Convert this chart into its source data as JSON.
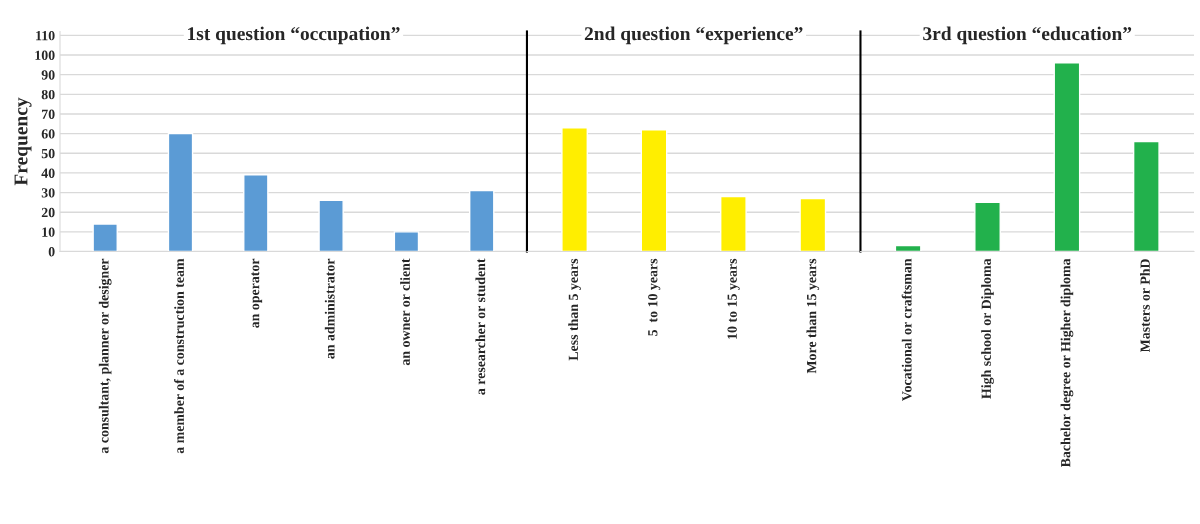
{
  "chart_data": [
    {
      "type": "bar",
      "title": "1st question “occupation”",
      "ylabel": "Frequency",
      "categories": [
        "a consultant, planner or designer",
        "a member of a construction team",
        "an operator",
        "an administrator",
        "an owner or client",
        "a researcher or student"
      ],
      "values": [
        14,
        60,
        39,
        26,
        10,
        31
      ],
      "color": "#5b9bd5",
      "ylim": [
        0,
        112
      ],
      "yticks": [
        0,
        10,
        20,
        30,
        40,
        50,
        60,
        70,
        80,
        90,
        100,
        110
      ],
      "grid": "y"
    },
    {
      "type": "bar",
      "title": "2nd question “experience”",
      "categories": [
        "Less than 5 years",
        "5  to 10 years",
        "10 to 15 years",
        "More than 15 years"
      ],
      "values": [
        63,
        62,
        28,
        27
      ],
      "color": "#ffee00",
      "ylim": [
        0,
        112
      ],
      "yticks": [
        0,
        10,
        20,
        30,
        40,
        50,
        60,
        70,
        80,
        90,
        100,
        110
      ],
      "grid": "y",
      "tick_labels": "x"
    },
    {
      "type": "bar",
      "title": "3rd question “education”",
      "categories": [
        "Vocational or craftsman",
        "High school or Diploma",
        "Bachelor degree or Higher diploma",
        "Masters or PhD"
      ],
      "values": [
        3,
        25,
        96,
        56
      ],
      "color": "#22b14c",
      "ylim": [
        0,
        112
      ],
      "yticks": [
        0,
        10,
        20,
        30,
        40,
        50,
        60,
        70,
        80,
        90,
        100,
        110
      ],
      "grid": "y",
      "tick_labels": "x"
    }
  ]
}
